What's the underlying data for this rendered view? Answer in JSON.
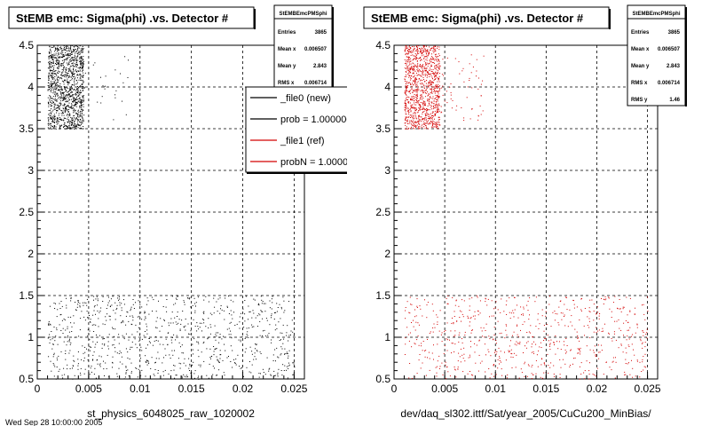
{
  "footer_text": "Wed Sep 28 10:00:00 2005",
  "legend_entries": [
    {
      "label": "_file0 (new)",
      "color": "#000000"
    },
    {
      "label": "prob = 1.000000",
      "color": "#000000"
    },
    {
      "label": "_file1 (ref)",
      "color": "#d40000"
    },
    {
      "label": "probN = 1.000000",
      "color": "#d40000"
    }
  ],
  "chart_data": [
    {
      "type": "scatter",
      "title": "StEMB emc: Sigma(phi) .vs. Detector #",
      "xlabel": "st_physics_6048025_raw_1020002",
      "ylabel": "",
      "xlim": [
        0,
        0.026
      ],
      "ylim": [
        0.5,
        4.5
      ],
      "xticks": [
        "0",
        "0.005",
        "0.01",
        "0.015",
        "0.02",
        "0.025"
      ],
      "yticks": [
        "0.5",
        "1",
        "1.5",
        "2",
        "2.5",
        "3",
        "3.5",
        "4",
        "4.5"
      ],
      "grid": true,
      "marker_color": "#000000",
      "stats": {
        "name": "StEMBEmcPMSphi",
        "rows": [
          {
            "label": "Entries",
            "value": "3865"
          },
          {
            "label": "Mean x",
            "value": "0.006507"
          },
          {
            "label": "Mean y",
            "value": "2.843"
          },
          {
            "label": "RMS x",
            "value": "0.006714"
          }
        ]
      },
      "clusters": [
        {
          "x_range": [
            0.001,
            0.0045
          ],
          "y_range": [
            3.5,
            4.5
          ],
          "count": 1300
        },
        {
          "x_range": [
            0.0045,
            0.009
          ],
          "y_range": [
            3.6,
            4.4
          ],
          "count": 25
        },
        {
          "x_range": [
            0.001,
            0.025
          ],
          "y_range": [
            0.5,
            1.5
          ],
          "count": 900
        }
      ]
    },
    {
      "type": "scatter",
      "title": "StEMB emc: Sigma(phi) .vs. Detector #",
      "xlabel": "dev/daq_sl302.ittf/Sat/year_2005/CuCu200_MinBias/",
      "ylabel": "",
      "xlim": [
        0,
        0.026
      ],
      "ylim": [
        0.5,
        4.5
      ],
      "xticks": [
        "0",
        "0.005",
        "0.01",
        "0.015",
        "0.02",
        "0.025"
      ],
      "yticks": [
        "0.5",
        "1",
        "1.5",
        "2",
        "2.5",
        "3",
        "3.5",
        "4",
        "4.5"
      ],
      "grid": true,
      "marker_color": "#d40000",
      "stats": {
        "name": "StEMBEmcPMSphi",
        "rows": [
          {
            "label": "Entries",
            "value": "3865"
          },
          {
            "label": "Mean x",
            "value": "0.006507"
          },
          {
            "label": "Mean y",
            "value": "2.843"
          },
          {
            "label": "RMS x",
            "value": "0.006714"
          },
          {
            "label": "RMS y",
            "value": "1.46"
          }
        ]
      },
      "clusters": [
        {
          "x_range": [
            0.001,
            0.0045
          ],
          "y_range": [
            3.5,
            4.5
          ],
          "count": 1100
        },
        {
          "x_range": [
            0.0045,
            0.009
          ],
          "y_range": [
            3.6,
            4.4
          ],
          "count": 60
        },
        {
          "x_range": [
            0.001,
            0.025
          ],
          "y_range": [
            0.5,
            1.5
          ],
          "count": 700
        }
      ]
    }
  ]
}
